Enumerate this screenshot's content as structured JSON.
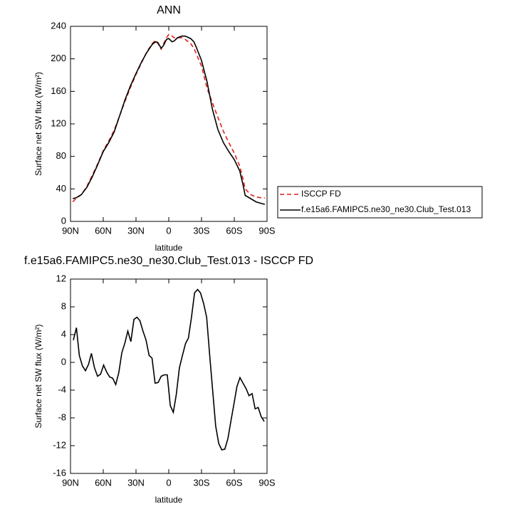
{
  "chart_data": [
    {
      "type": "line",
      "title": "ANN",
      "xlabel": "latitude",
      "ylabel": "Surface net SW flux (W/m²)",
      "xlim": [
        90,
        -90
      ],
      "ylim": [
        0,
        240
      ],
      "xticks": [
        {
          "value": 90,
          "label": "90N"
        },
        {
          "value": 60,
          "label": "60N"
        },
        {
          "value": 30,
          "label": "30N"
        },
        0,
        {
          "value": -30,
          "label": "30S"
        },
        {
          "value": -60,
          "label": "60S"
        },
        {
          "value": -90,
          "label": "90S"
        }
      ],
      "yticks": [
        0,
        40,
        80,
        120,
        160,
        200,
        240
      ],
      "legend": "right",
      "x": [
        88,
        85,
        80,
        75,
        70,
        65,
        60,
        55,
        50,
        45,
        40,
        35,
        30,
        25,
        20,
        15,
        12,
        10,
        7,
        5,
        2,
        0,
        -3,
        -5,
        -8,
        -12,
        -15,
        -20,
        -23,
        -25,
        -30,
        -35,
        -40,
        -45,
        -50,
        -55,
        -60,
        -65,
        -68,
        -70,
        -75,
        -80,
        -85,
        -88
      ],
      "series": [
        {
          "name": "ISCCP FD",
          "color": "#e0201b",
          "dash": "dashed",
          "values": [
            24,
            28,
            33,
            43,
            57,
            71,
            87,
            99,
            112,
            130,
            148,
            165,
            181,
            195,
            209,
            219,
            223,
            219,
            212,
            218,
            226,
            230,
            228,
            226,
            226,
            226,
            224,
            219,
            213,
            207,
            191,
            164,
            146,
            128,
            111,
            97,
            84,
            68,
            52,
            40,
            33,
            30,
            29,
            29
          ]
        },
        {
          "name": "f.e15a6.FAMIPC5.ne30_ne30.Club_Test.013",
          "color": "#000000",
          "dash": "solid",
          "values": [
            28,
            29,
            33,
            42,
            55,
            70,
            86,
            97,
            110,
            130,
            150,
            167,
            182,
            196,
            208,
            218,
            221,
            220,
            213,
            216,
            224,
            225,
            221,
            222,
            226,
            228,
            228,
            225,
            221,
            215,
            198,
            172,
            138,
            113,
            97,
            86,
            76,
            62,
            45,
            32,
            28,
            24,
            22,
            21
          ]
        }
      ]
    },
    {
      "type": "line",
      "title": "f.e15a6.FAMIPC5.ne30_ne30.Club_Test.013 - ISCCP FD",
      "xlabel": "latitude",
      "ylabel": "Surface net SW flux (W/m²)",
      "xlim": [
        90,
        -90
      ],
      "ylim": [
        -16,
        12
      ],
      "xticks": [
        {
          "value": 90,
          "label": "90N"
        },
        {
          "value": 60,
          "label": "60N"
        },
        {
          "value": 30,
          "label": "30N"
        },
        0,
        {
          "value": -30,
          "label": "30S"
        },
        {
          "value": -60,
          "label": "60S"
        },
        {
          "value": -90,
          "label": "90S"
        }
      ],
      "yticks": [
        -16,
        -12,
        -8,
        -4,
        0,
        4,
        8,
        12
      ],
      "x": [
        87.4,
        84.6,
        81.9,
        79.1,
        76.3,
        73.5,
        70.8,
        68.0,
        65.2,
        62.4,
        59.7,
        56.9,
        54.1,
        51.3,
        48.6,
        45.8,
        43.0,
        40.2,
        37.5,
        34.7,
        31.9,
        29.1,
        26.4,
        23.6,
        20.8,
        18.0,
        15.3,
        12.5,
        9.7,
        6.9,
        4.2,
        1.4,
        -1.4,
        -4.2,
        -6.9,
        -9.7,
        -12.5,
        -15.3,
        -18.0,
        -20.8,
        -23.6,
        -26.4,
        -29.1,
        -31.9,
        -34.7,
        -37.5,
        -40.2,
        -43.0,
        -45.8,
        -48.6,
        -51.3,
        -54.1,
        -56.9,
        -59.7,
        -62.4,
        -65.2,
        -68.0,
        -70.8,
        -73.5,
        -76.3,
        -79.1,
        -81.9,
        -84.6,
        -87.4
      ],
      "color": "#000000",
      "values": [
        3.2,
        5,
        1,
        -0.5,
        -1.2,
        -0.3,
        1.3,
        -0.8,
        -2,
        -1.7,
        -0.4,
        -1.4,
        -2.1,
        -2.3,
        -3.2,
        -1.5,
        1.4,
        2.8,
        4.5,
        3,
        6.2,
        6.5,
        6,
        4.5,
        3.2,
        1,
        0.6,
        -3,
        -2.9,
        -2,
        -1.8,
        -1.8,
        -6.2,
        -7.2,
        -4.6,
        -0.8,
        1,
        2.7,
        3.5,
        6.5,
        10,
        10.5,
        10,
        8.5,
        6.5,
        1,
        -4,
        -9.2,
        -11.7,
        -12.6,
        -12.5,
        -11,
        -8.5,
        -6,
        -3.5,
        -2.2,
        -3,
        -3.8,
        -4.8,
        -4.5,
        -6.7,
        -6.5,
        -7.8,
        -8.5
      ]
    }
  ]
}
